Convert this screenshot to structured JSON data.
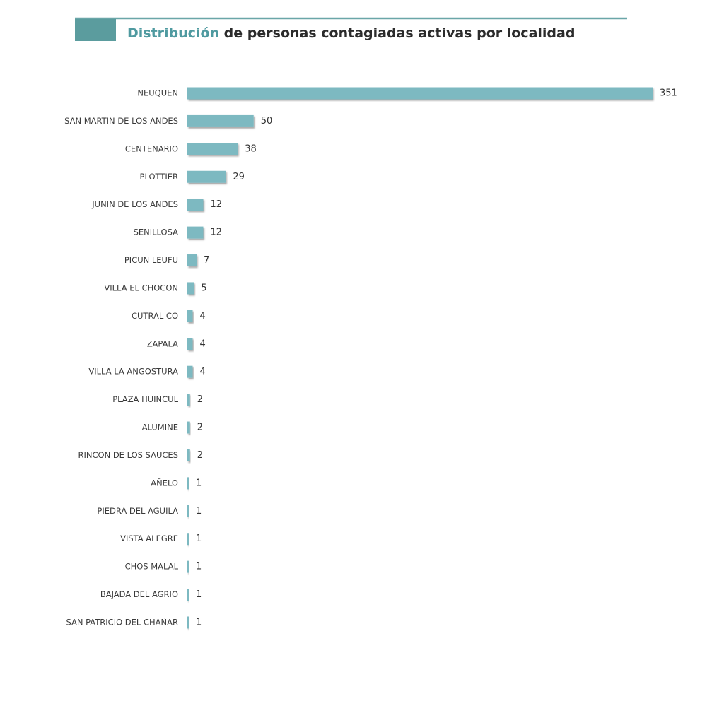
{
  "chart_data": {
    "type": "hbar",
    "title": {
      "highlight": "Distribución",
      "rest": "de personas contagiadas activas por localidad"
    },
    "categories": [
      "NEUQUEN",
      "SAN MARTIN DE LOS ANDES",
      "CENTENARIO",
      "PLOTTIER",
      "JUNIN DE LOS ANDES",
      "SENILLOSA",
      "PICUN LEUFU",
      "VILLA EL CHOCON",
      "CUTRAL CO",
      "ZAPALA",
      "VILLA LA ANGOSTURA",
      "PLAZA HUINCUL",
      "ALUMINE",
      "RINCON DE LOS SAUCES",
      "AÑELO",
      "PIEDRA DEL AGUILA",
      "VISTA ALEGRE",
      "CHOS MALAL",
      "BAJADA DEL AGRIO",
      "SAN PATRICIO DEL CHAÑAR"
    ],
    "values": [
      351,
      50,
      38,
      29,
      12,
      12,
      7,
      5,
      4,
      4,
      4,
      2,
      2,
      2,
      1,
      1,
      1,
      1,
      1,
      1
    ],
    "color": "#7db9c1"
  }
}
